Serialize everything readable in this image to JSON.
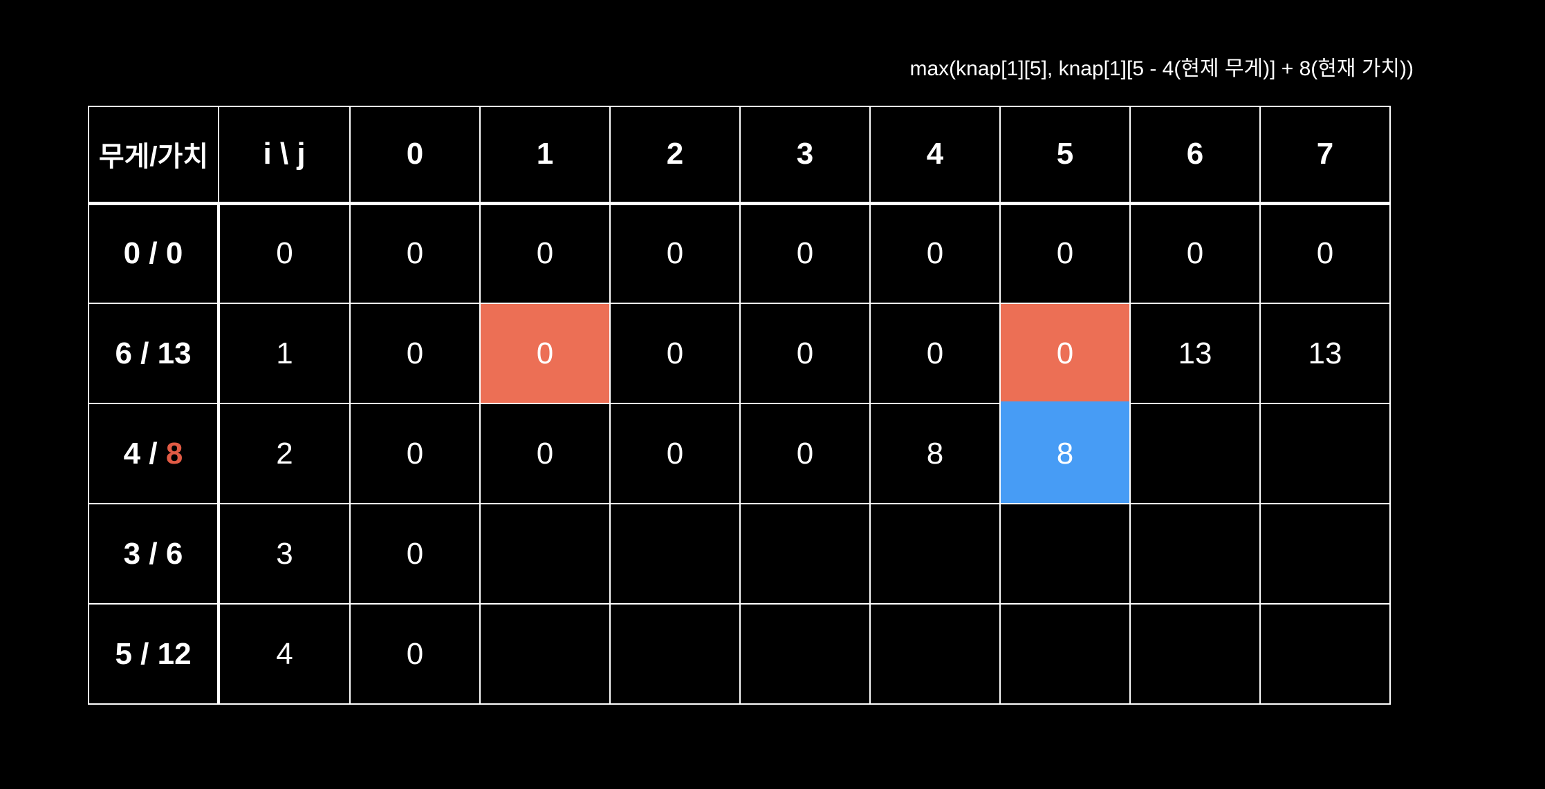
{
  "formula": "max(knap[1][5], knap[1][5 - 4(현제 무게)] + 8(현재 가치))",
  "table": {
    "corner_header": "무게/가치",
    "index_header": "i \\ j",
    "col_headers": [
      "0",
      "1",
      "2",
      "3",
      "4",
      "5",
      "6",
      "7"
    ],
    "rows": [
      {
        "weight": "0",
        "separator": " / ",
        "value": "0",
        "value_accent": false,
        "index": "0",
        "cells": [
          "0",
          "0",
          "0",
          "0",
          "0",
          "0",
          "0",
          "0"
        ]
      },
      {
        "weight": "6",
        "separator": " / ",
        "value": "13",
        "value_accent": false,
        "index": "1",
        "cells": [
          "0",
          "0",
          "0",
          "0",
          "0",
          "0",
          "13",
          "13"
        ]
      },
      {
        "weight": "4",
        "separator": " / ",
        "value": "8",
        "value_accent": true,
        "index": "2",
        "cells": [
          "0",
          "0",
          "0",
          "0",
          "8",
          "8",
          "",
          ""
        ]
      },
      {
        "weight": "3",
        "separator": " / ",
        "value": "6",
        "value_accent": false,
        "index": "3",
        "cells": [
          "0",
          "",
          "",
          "",
          "",
          "",
          "",
          ""
        ]
      },
      {
        "weight": "5",
        "separator": " / ",
        "value": "12",
        "value_accent": false,
        "index": "4",
        "cells": [
          "0",
          "",
          "",
          "",
          "",
          "",
          "",
          ""
        ]
      }
    ],
    "highlights": [
      {
        "row": 1,
        "col": 1,
        "color": "orange"
      },
      {
        "row": 1,
        "col": 5,
        "color": "orange"
      },
      {
        "row": 2,
        "col": 5,
        "color": "blue"
      }
    ]
  },
  "colors": {
    "background": "#000000",
    "grid": "#FFFFFF",
    "text": "#FFFFFF",
    "highlight_orange": "#EC6F55",
    "highlight_blue": "#479CF5",
    "accent_text": "#E25B45"
  }
}
